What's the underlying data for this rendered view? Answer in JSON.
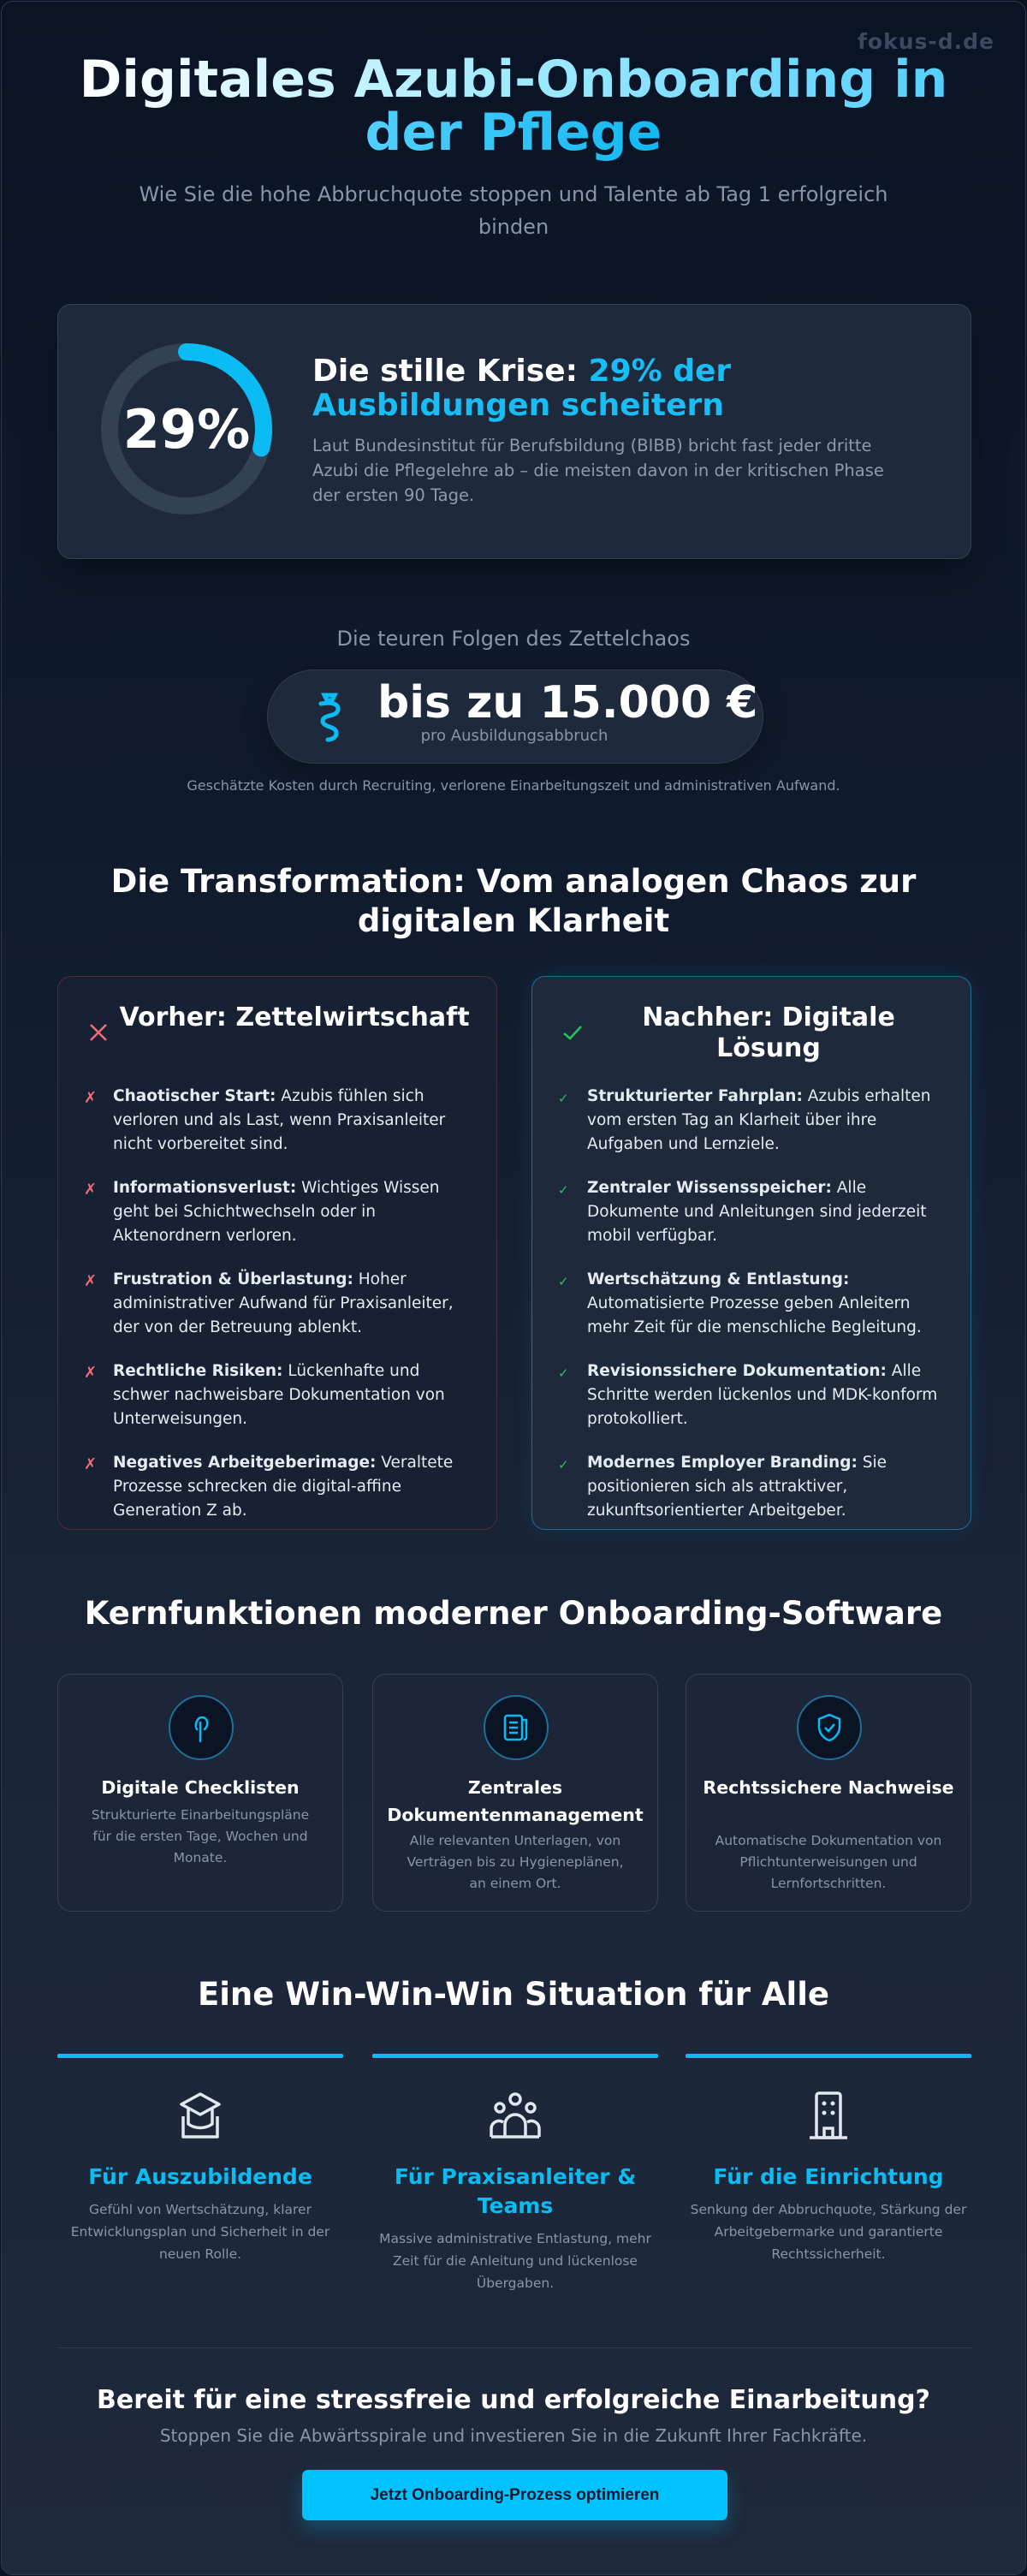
{
  "watermark": "fokus-d.de",
  "header": {
    "title": "Digitales Azubi-Onboarding in der Pflege",
    "subtitle": "Wie Sie die hohe Abbruchquote stoppen und Talente ab Tag 1 erfolgreich binden"
  },
  "crisis": {
    "ring_value": "29%",
    "ring_percent": 29,
    "heading_prefix": "Die stille Krise: ",
    "heading_highlight": "29% der Ausbildungen scheitern",
    "text": "Laut Bundesinstitut für Berufsbildung (BIBB) bricht fast jeder dritte Azubi die Pflegelehre ab – die meisten davon in der kritischen Phase der ersten 90 Tage."
  },
  "cost": {
    "label": "Die teuren Folgen des Zettelchaos",
    "icon": "money-bag-icon",
    "value": "bis zu 15.000 €",
    "per": "pro Ausbildungsabbruch",
    "note": "Geschätzte Kosten durch Recruiting, verlorene Einarbeitungszeit und administrativen Aufwand."
  },
  "transformation": {
    "heading": "Die Transformation: Vom analogen Chaos zur digitalen Klarheit",
    "before": {
      "title": "Vorher: Zettelwirtschaft",
      "marker": "✗",
      "items": [
        {
          "bold": "Chaotischer Start:",
          "text": " Azubis fühlen sich verloren und als Last, wenn Praxisanleiter nicht vorbereitet sind."
        },
        {
          "bold": "Informationsverlust:",
          "text": " Wichtiges Wissen geht bei Schichtwechseln oder in Aktenordnern verloren."
        },
        {
          "bold": "Frustration & Überlastung:",
          "text": " Hoher administrativer Aufwand für Praxisanleiter, der von der Betreuung ablenkt."
        },
        {
          "bold": "Rechtliche Risiken:",
          "text": " Lückenhafte und schwer nachweisbare Dokumentation von Unterweisungen."
        },
        {
          "bold": "Negatives Arbeitgeberimage:",
          "text": " Veraltete Prozesse schrecken die digital-affine Generation Z ab."
        }
      ]
    },
    "after": {
      "title": "Nachher: Digitale Lösung",
      "marker": "✓",
      "items": [
        {
          "bold": "Strukturierter Fahrplan:",
          "text": " Azubis erhalten vom ersten Tag an Klarheit über ihre Aufgaben und Lernziele."
        },
        {
          "bold": "Zentraler Wissensspeicher:",
          "text": " Alle Dokumente und Anleitungen sind jederzeit mobil verfügbar."
        },
        {
          "bold": "Wertschätzung & Entlastung:",
          "text": " Automatisierte Prozesse geben Anleitern mehr Zeit für die menschliche Begleitung."
        },
        {
          "bold": "Revisionssichere Dokumentation:",
          "text": " Alle Schritte werden lückenlos und MDK-konform protokolliert."
        },
        {
          "bold": "Modernes Employer Branding:",
          "text": " Sie positionieren sich als attraktiver, zukunftsorientierter Arbeitgeber."
        }
      ]
    }
  },
  "features": {
    "heading": "Kernfunktionen moderner Onboarding-Software",
    "items": [
      {
        "icon": "touch-icon",
        "title": "Digitale Checklisten",
        "text": "Strukturierte Einarbeitungspläne für die ersten Tage, Wochen und Monate."
      },
      {
        "icon": "document-icon",
        "title": "Zentrales Dokumentenmanagement",
        "text": "Alle relevanten Unterlagen, von Verträgen bis zu Hygieneplänen, an einem Ort."
      },
      {
        "icon": "shield-check-icon",
        "title": "Rechtssichere Nachweise",
        "text": "Automatische Dokumentation von Pflichtunterweisungen und Lernfortschritten."
      }
    ]
  },
  "winwin": {
    "heading": "Eine Win-Win-Win Situation für Alle",
    "items": [
      {
        "icon": "graduation-cap-icon",
        "title": "Für Auszubildende",
        "text": "Gefühl von Wertschätzung, klarer Entwicklungsplan und Sicherheit in der neuen Rolle."
      },
      {
        "icon": "team-icon",
        "title": "Für Praxisanleiter & Teams",
        "text": "Massive administrative Entlastung, mehr Zeit für die Anleitung und lückenlose Übergaben."
      },
      {
        "icon": "building-icon",
        "title": "Für die Einrichtung",
        "text": "Senkung der Abbruchquote, Stärkung der Arbeitgebermarke und garantierte Rechtssicherheit."
      }
    ]
  },
  "cta": {
    "heading": "Bereit für eine stressfreie und erfolgreiche Einarbeitung?",
    "subtitle": "Stoppen Sie die Abwärtsspirale und investieren Sie in die Zukunft Ihrer Fachkräfte.",
    "button": "Jetzt Onboarding-Prozess optimieren"
  },
  "colors": {
    "accent": "#00c2ff",
    "negative": "#f26d7a",
    "positive": "#22c55e",
    "card": "#1e293b"
  }
}
